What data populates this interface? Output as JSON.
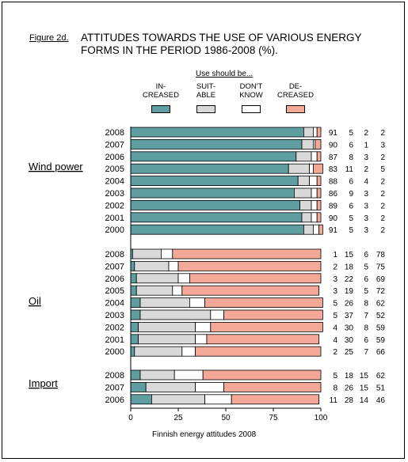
{
  "figure_label": "Figure 2d.",
  "title_lines": [
    "ATTITUDES TOWARDS THE USE OF VARIOUS ENERGY",
    "FORMS IN THE PERIOD 1986-2008 (%)."
  ],
  "legend_title": "Use should be...",
  "footer": "Finnish energy attitudes 2008",
  "colors": {
    "increased": "#5f9ea0",
    "suitable": "#d9d9d9",
    "dont_know": "#ffffff",
    "decreased": "#f4a898"
  },
  "chart_data": {
    "type": "bar",
    "orientation": "horizontal",
    "stacked": true,
    "xlim": [
      0,
      100
    ],
    "xticks": [
      "0",
      "25",
      "50",
      "75",
      "100"
    ],
    "series": [
      {
        "key": "increased",
        "name": "IN-\nCREASED"
      },
      {
        "key": "suitable",
        "name": "SUIT-\nABLE"
      },
      {
        "key": "dont_know",
        "name": "DON'T\nKNOW"
      },
      {
        "key": "decreased",
        "name": "DE-\nCREASED"
      }
    ],
    "groups": [
      {
        "name": "Wind power",
        "rows": [
          {
            "year": "2008",
            "values": [
              91,
              5,
              2,
              2
            ]
          },
          {
            "year": "2007",
            "values": [
              90,
              6,
              1,
              3
            ]
          },
          {
            "year": "2006",
            "values": [
              87,
              8,
              3,
              2
            ]
          },
          {
            "year": "2005",
            "values": [
              83,
              11,
              2,
              5
            ]
          },
          {
            "year": "2004",
            "values": [
              88,
              6,
              4,
              2
            ]
          },
          {
            "year": "2003",
            "values": [
              86,
              9,
              3,
              2
            ]
          },
          {
            "year": "2002",
            "values": [
              89,
              6,
              3,
              2
            ]
          },
          {
            "year": "2001",
            "values": [
              90,
              5,
              3,
              2
            ]
          },
          {
            "year": "2000",
            "values": [
              91,
              5,
              3,
              2
            ]
          }
        ]
      },
      {
        "name": "Oil",
        "rows": [
          {
            "year": "2008",
            "values": [
              1,
              15,
              6,
              78
            ]
          },
          {
            "year": "2007",
            "values": [
              2,
              18,
              5,
              75
            ]
          },
          {
            "year": "2006",
            "values": [
              3,
              22,
              6,
              69
            ]
          },
          {
            "year": "2005",
            "values": [
              3,
              19,
              5,
              72
            ]
          },
          {
            "year": "2004",
            "values": [
              5,
              26,
              8,
              62
            ]
          },
          {
            "year": "2003",
            "values": [
              5,
              37,
              7,
              52
            ]
          },
          {
            "year": "2002",
            "values": [
              4,
              30,
              8,
              59
            ]
          },
          {
            "year": "2001",
            "values": [
              4,
              30,
              6,
              59
            ]
          },
          {
            "year": "2000",
            "values": [
              2,
              25,
              7,
              66
            ]
          }
        ]
      },
      {
        "name": "Import",
        "rows": [
          {
            "year": "2008",
            "values": [
              5,
              18,
              15,
              62
            ]
          },
          {
            "year": "2007",
            "values": [
              8,
              26,
              15,
              51
            ]
          },
          {
            "year": "2006",
            "values": [
              11,
              28,
              14,
              46
            ]
          }
        ]
      }
    ]
  }
}
